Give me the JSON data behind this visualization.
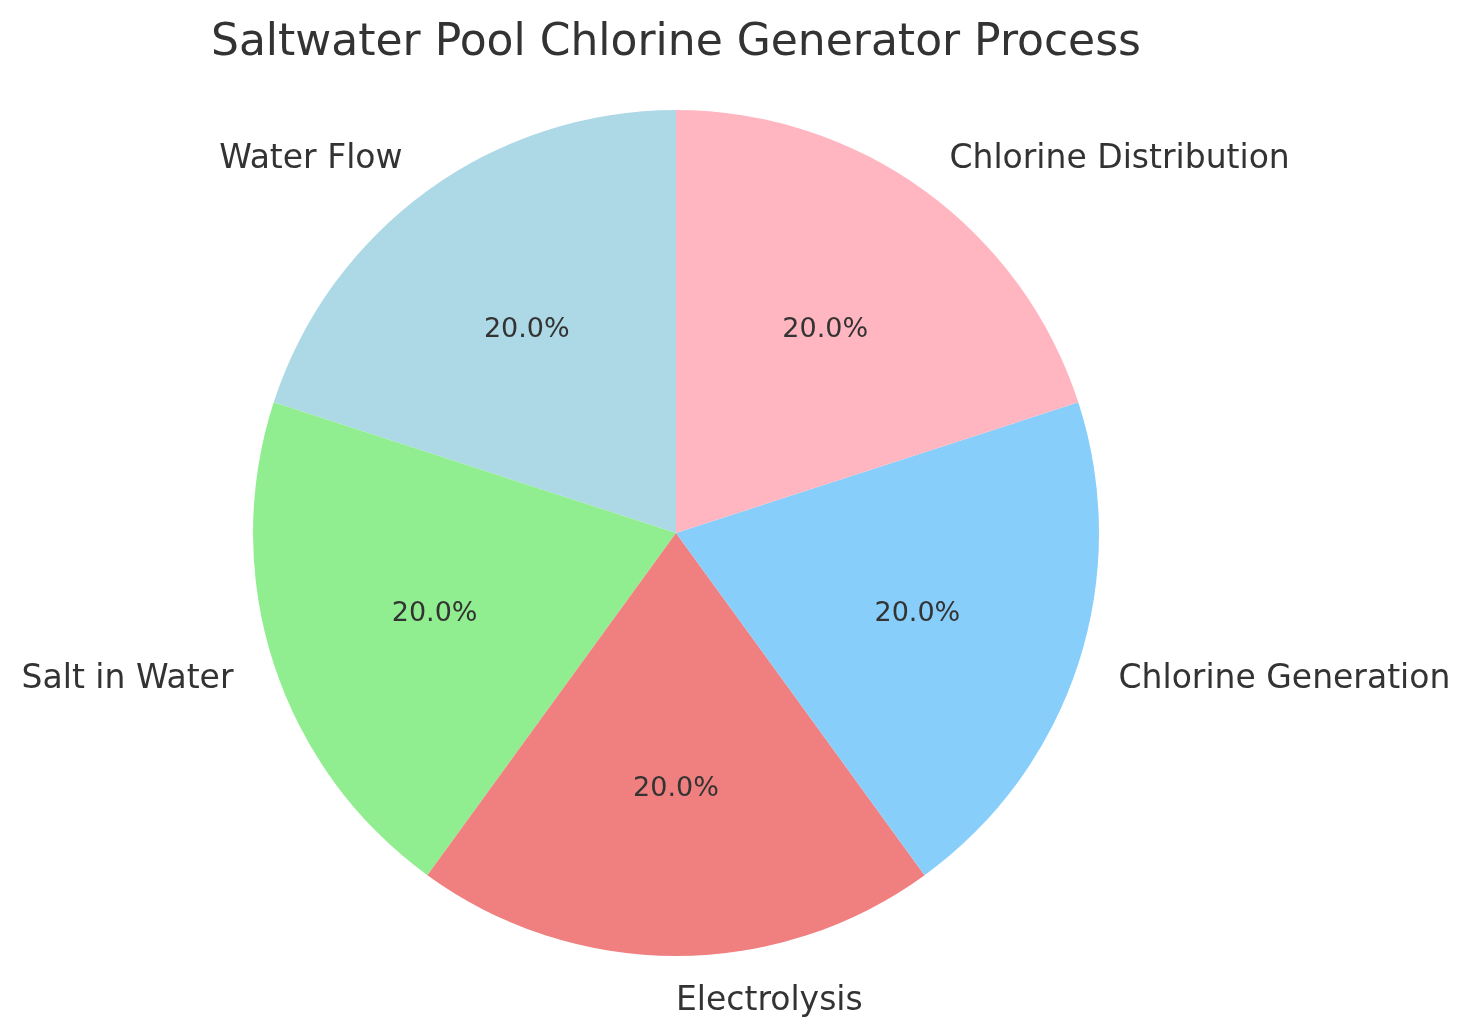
{
  "chart_data": {
    "type": "pie",
    "title": "Saltwater Pool Chlorine Generator Process",
    "categories": [
      "Water Flow",
      "Salt in Water",
      "Electrolysis",
      "Chlorine Generation",
      "Chlorine Distribution"
    ],
    "values": [
      20,
      20,
      20,
      20,
      20
    ],
    "colors": [
      "#add8e6",
      "#90ee90",
      "#f08080",
      "#87cefa",
      "#ffb6c1"
    ],
    "value_labels": [
      "20.0%",
      "20.0%",
      "20.0%",
      "20.0%",
      "20.0%"
    ]
  }
}
